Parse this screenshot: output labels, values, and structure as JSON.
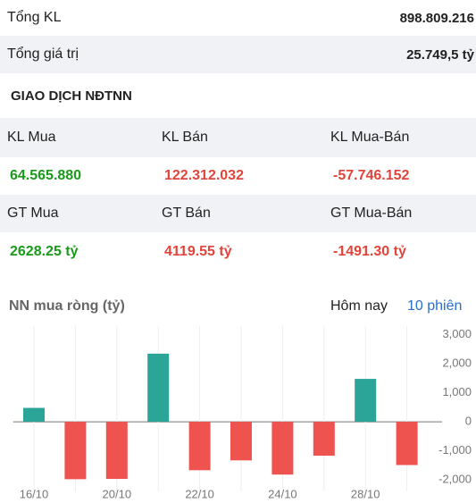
{
  "summary": [
    {
      "label": "Tổng KL",
      "value": "898.809.216"
    },
    {
      "label": "Tổng giá trị",
      "value": "25.749,5 tỷ"
    }
  ],
  "section_title": "GIAO DỊCH NĐTNN",
  "table": {
    "rows": [
      {
        "cells": [
          "KL Mua",
          "KL Bán",
          "KL Mua-Bán"
        ]
      },
      {
        "cells": [
          "64.565.880",
          "122.312.032",
          "-57.746.152"
        ],
        "colors": [
          "#1a9a1a",
          "#e0443a",
          "#e0443a"
        ]
      },
      {
        "cells": [
          "GT Mua",
          "GT Bán",
          "GT Mua-Bán"
        ]
      },
      {
        "cells": [
          "2628.25 tỷ",
          "4119.55 tỷ",
          "-1491.30 tỷ"
        ],
        "colors": [
          "#1a9a1a",
          "#e0443a",
          "#e0443a"
        ]
      }
    ]
  },
  "chart_data": {
    "type": "bar",
    "title": "NN mua ròng (tỷ)",
    "tabs": [
      "Hôm nay",
      "10 phiên"
    ],
    "categories": [
      "16/10",
      null,
      "20/10",
      null,
      "22/10",
      null,
      "24/10",
      null,
      "28/10",
      null
    ],
    "values": [
      480,
      -1980,
      -1970,
      2350,
      -1670,
      -1330,
      -1820,
      -1170,
      1480,
      -1491.3
    ],
    "positive_color": "#2ba597",
    "negative_color": "#ef5350",
    "ylim": [
      -2400,
      3300
    ],
    "yticks": [
      {
        "value": 3000,
        "label": "3,000"
      },
      {
        "value": 2000,
        "label": "2,000"
      },
      {
        "value": 1000,
        "label": "1,000"
      },
      0,
      {
        "value": -1000,
        "label": "-1,000"
      },
      {
        "value": -2000,
        "label": "-2,000"
      }
    ]
  }
}
